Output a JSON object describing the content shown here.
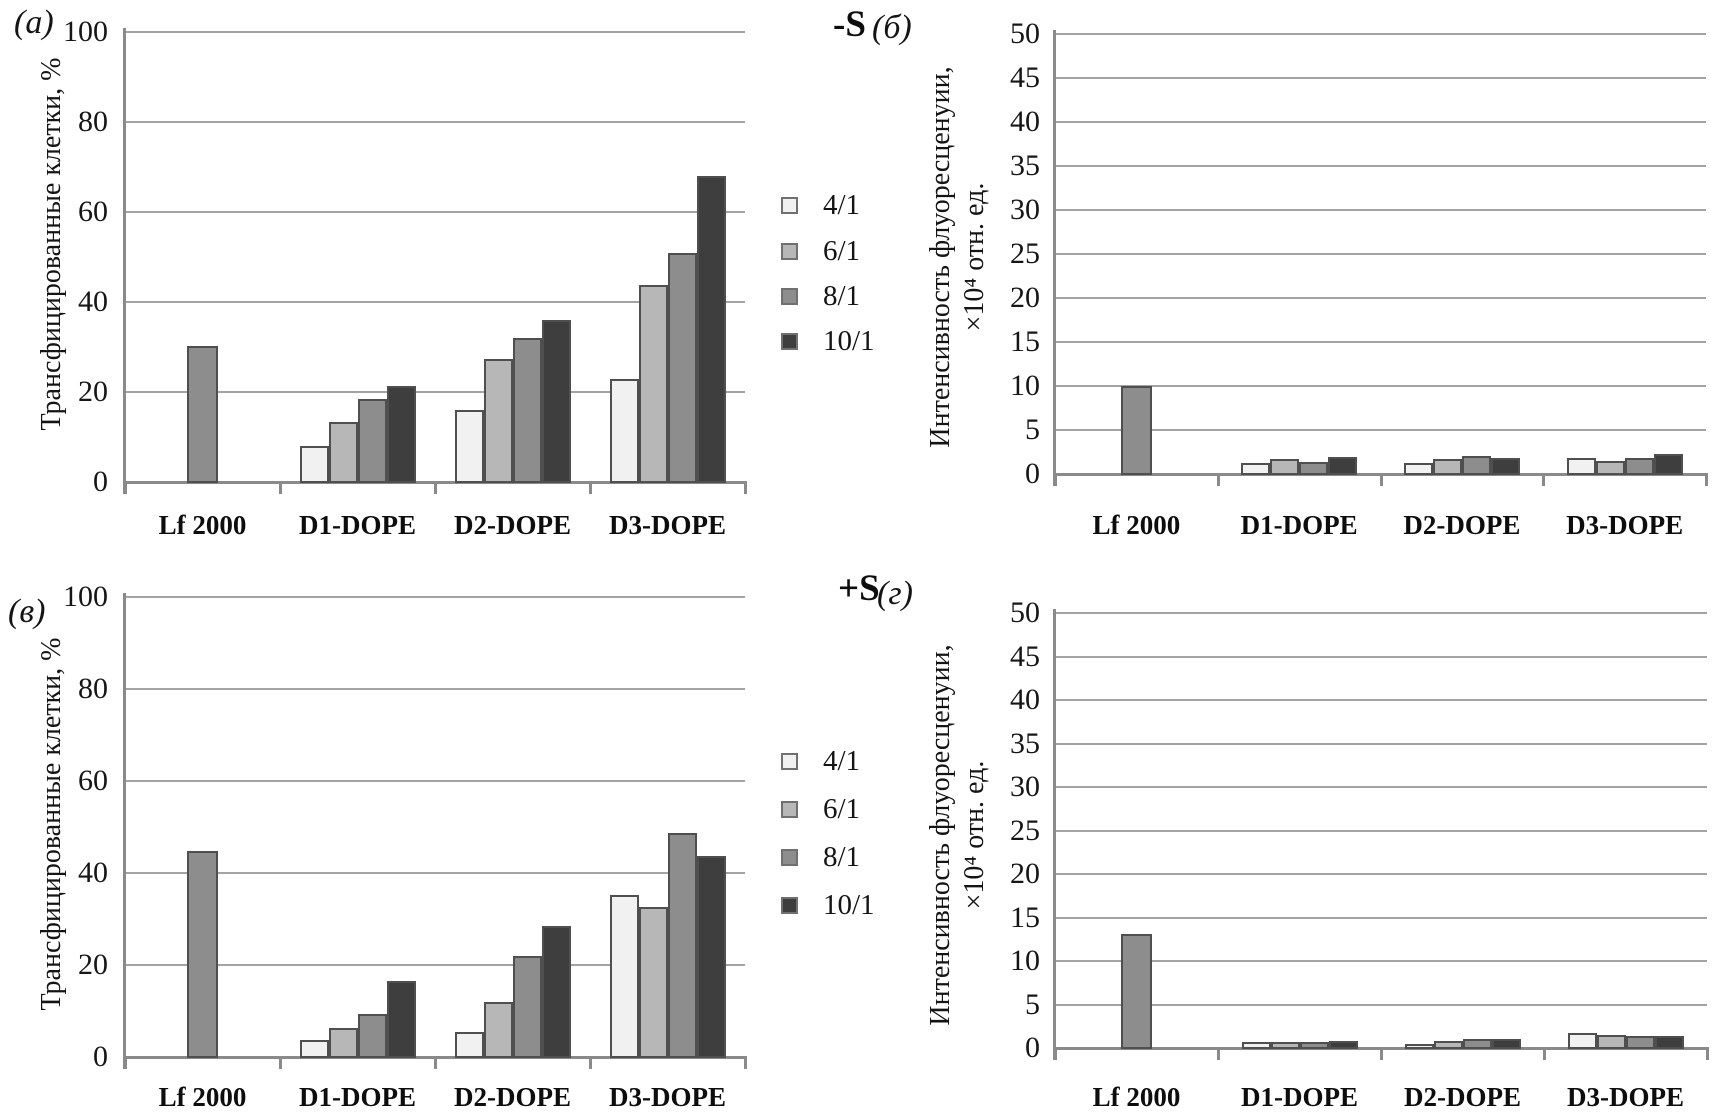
{
  "chart_data": [
    {
      "type": "bar",
      "panel_letter": "(а)",
      "condition_label": null,
      "ylabel_lines": [
        "Трансфицированные клетки, %"
      ],
      "ylim": [
        0,
        100
      ],
      "yticks": [
        100,
        80,
        60,
        40,
        20,
        0
      ],
      "grid": true,
      "legend_position": "right-of-plot",
      "categories": [
        "Lf 2000",
        "D1-DOPE",
        "D2-DOPE",
        "D3-DOPE"
      ],
      "series": [
        {
          "name": "4/1",
          "color": "#f1f1f1",
          "values": [
            null,
            7.9,
            15.9,
            22.9
          ]
        },
        {
          "name": "6/1",
          "color": "#b7b7b7",
          "values": [
            null,
            13.4,
            27.3,
            43.7
          ]
        },
        {
          "name": "8/1",
          "color": "#8d8d8d",
          "values": [
            30.2,
            18.5,
            31.9,
            50.9
          ]
        },
        {
          "name": "10/1",
          "color": "#3e3e3e",
          "values": [
            null,
            21.4,
            35.9,
            68.1
          ]
        }
      ]
    },
    {
      "type": "bar",
      "panel_letter": "(б)",
      "condition_label": "-S",
      "ylabel_lines": [
        "Интенсивность флуоресценуии,",
        "×10⁴ отн. ед."
      ],
      "ylim": [
        0,
        50
      ],
      "yticks": [
        50,
        45,
        40,
        35,
        30,
        25,
        20,
        15,
        10,
        5,
        0
      ],
      "grid": true,
      "legend_position": "none",
      "categories": [
        "Lf 2000",
        "D1-DOPE",
        "D2-DOPE",
        "D3-DOPE"
      ],
      "series": [
        {
          "name": "4/1",
          "color": "#f1f1f1",
          "values": [
            null,
            1.3,
            1.3,
            1.8
          ]
        },
        {
          "name": "6/1",
          "color": "#b7b7b7",
          "values": [
            null,
            1.7,
            1.7,
            1.5
          ]
        },
        {
          "name": "8/1",
          "color": "#8d8d8d",
          "values": [
            10.0,
            1.4,
            2.0,
            1.8
          ]
        },
        {
          "name": "10/1",
          "color": "#3e3e3e",
          "values": [
            null,
            1.9,
            1.8,
            2.3
          ]
        }
      ]
    },
    {
      "type": "bar",
      "panel_letter": "(в)",
      "condition_label": null,
      "ylabel_lines": [
        "Трансфицированные клетки, %"
      ],
      "ylim": [
        0,
        100
      ],
      "yticks": [
        100,
        80,
        60,
        40,
        20,
        0
      ],
      "grid": true,
      "legend_position": "right-of-plot",
      "categories": [
        "Lf 2000",
        "D1-DOPE",
        "D2-DOPE",
        "D3-DOPE"
      ],
      "series": [
        {
          "name": "4/1",
          "color": "#f1f1f1",
          "values": [
            null,
            3.6,
            5.5,
            35.2
          ]
        },
        {
          "name": "6/1",
          "color": "#b7b7b7",
          "values": [
            null,
            6.2,
            11.9,
            32.7
          ]
        },
        {
          "name": "8/1",
          "color": "#8d8d8d",
          "values": [
            44.8,
            9.4,
            21.9,
            48.6
          ]
        },
        {
          "name": "10/1",
          "color": "#3e3e3e",
          "values": [
            null,
            16.6,
            28.4,
            43.7
          ]
        }
      ]
    },
    {
      "type": "bar",
      "panel_letter": "(г)",
      "condition_label": "+S",
      "ylabel_lines": [
        "Интенсивность флуоресценуии,",
        "×10⁴ отн. ед."
      ],
      "ylim": [
        0,
        50
      ],
      "yticks": [
        50,
        45,
        40,
        35,
        30,
        25,
        20,
        15,
        10,
        5,
        0
      ],
      "grid": true,
      "legend_position": "none",
      "categories": [
        "Lf 2000",
        "D1-DOPE",
        "D2-DOPE",
        "D3-DOPE"
      ],
      "series": [
        {
          "name": "4/1",
          "color": "#f1f1f1",
          "values": [
            null,
            0.7,
            0.5,
            1.7
          ]
        },
        {
          "name": "6/1",
          "color": "#b7b7b7",
          "values": [
            null,
            0.7,
            0.8,
            1.5
          ]
        },
        {
          "name": "8/1",
          "color": "#8d8d8d",
          "values": [
            13.1,
            0.7,
            1.0,
            1.4
          ]
        },
        {
          "name": "10/1",
          "color": "#3e3e3e",
          "values": [
            null,
            0.8,
            1.0,
            1.4
          ]
        }
      ]
    }
  ],
  "legend": {
    "items": [
      {
        "label": "4/1",
        "color": "#f1f1f1"
      },
      {
        "label": "6/1",
        "color": "#b7b7b7"
      },
      {
        "label": "8/1",
        "color": "#8d8d8d"
      },
      {
        "label": "10/1",
        "color": "#3e3e3e"
      }
    ]
  },
  "styles": {
    "grid_color": "#a3a3a3",
    "axis_color": "#8a8a8a",
    "bar_border_color": "#4f4f4f",
    "swatch_border_color": "#707070"
  }
}
